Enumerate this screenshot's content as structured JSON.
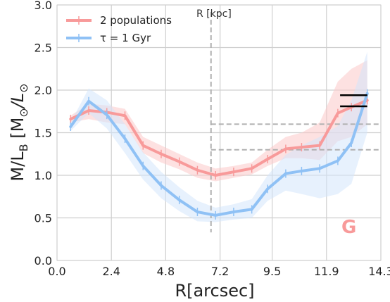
{
  "chart_data": {
    "type": "line",
    "xlabel": "R[arcsec]",
    "ylabel_parts": {
      "main": "M/L",
      "sub": "B",
      "bracket_open": " [M",
      "sun1": "⊙",
      "slash": "/L",
      "sun2": "⊙",
      "bracket_close": "]"
    },
    "xlim": [
      0.0,
      14.3
    ],
    "ylim": [
      0.0,
      3.0
    ],
    "x_ticks": [
      0.0,
      2.4,
      4.8,
      7.2,
      9.5,
      11.9,
      14.3
    ],
    "x_tick_labels": [
      "0.0",
      "2.4",
      "4.8",
      "7.2",
      "9.5",
      "11.9",
      "14.3"
    ],
    "y_ticks": [
      0.0,
      0.5,
      1.0,
      1.5,
      2.0,
      2.5,
      3.0
    ],
    "y_tick_labels": [
      "0.0",
      "0.5",
      "1.0",
      "1.5",
      "2.0",
      "2.5",
      "3.0"
    ],
    "grid": true,
    "legend_position": "top-left",
    "series": [
      {
        "name": "2 populations",
        "color": "#f89a9a",
        "band_color": "#fbc8c8",
        "x": [
          0.6,
          1.4,
          2.2,
          3.0,
          3.8,
          4.6,
          5.4,
          6.2,
          7.0,
          7.8,
          8.6,
          9.3,
          10.1,
          10.8,
          11.6,
          12.4,
          13.0,
          13.7
        ],
        "values": [
          1.66,
          1.76,
          1.74,
          1.7,
          1.35,
          1.25,
          1.16,
          1.06,
          1.0,
          1.04,
          1.08,
          1.19,
          1.31,
          1.33,
          1.35,
          1.73,
          1.8,
          1.88
        ],
        "lower": [
          1.62,
          1.66,
          1.62,
          1.6,
          1.26,
          1.15,
          1.07,
          0.97,
          0.93,
          0.97,
          1.01,
          1.11,
          1.2,
          1.2,
          1.18,
          1.4,
          1.45,
          1.6
        ],
        "upper": [
          1.7,
          1.84,
          1.82,
          1.78,
          1.45,
          1.35,
          1.25,
          1.15,
          1.08,
          1.11,
          1.15,
          1.3,
          1.45,
          1.5,
          1.62,
          2.1,
          2.25,
          2.35
        ]
      },
      {
        "name": "τ = 1 Gyr",
        "color": "#8fc1f5",
        "band_color": "#d3e6fb",
        "x": [
          0.6,
          1.4,
          2.2,
          3.0,
          3.8,
          4.6,
          5.4,
          6.2,
          7.0,
          7.8,
          8.6,
          9.3,
          10.1,
          10.8,
          11.6,
          12.4,
          13.0,
          13.7
        ],
        "values": [
          1.57,
          1.87,
          1.71,
          1.43,
          1.11,
          0.88,
          0.71,
          0.57,
          0.53,
          0.57,
          0.6,
          0.84,
          1.02,
          1.05,
          1.08,
          1.17,
          1.38,
          1.96
        ],
        "lower": [
          1.52,
          1.73,
          1.55,
          1.26,
          0.95,
          0.73,
          0.58,
          0.46,
          0.45,
          0.48,
          0.5,
          0.7,
          0.82,
          0.78,
          0.73,
          0.78,
          0.9,
          1.5
        ],
        "upper": [
          1.62,
          2.02,
          1.88,
          1.6,
          1.27,
          1.04,
          0.86,
          0.7,
          0.62,
          0.66,
          0.72,
          1.0,
          1.24,
          1.35,
          1.45,
          1.58,
          1.88,
          2.45
        ]
      }
    ],
    "annotations": {
      "vline_label": "R [kpc]",
      "vline_x": 6.8,
      "hlines_dashed": [
        {
          "y": 1.6,
          "x_start": 6.8,
          "x_end": 14.3
        },
        {
          "y": 1.3,
          "x_start": 6.8,
          "x_end": 14.3
        }
      ],
      "hlines_solid": [
        {
          "y": 1.94,
          "x_start": 12.5,
          "x_end": 13.7
        },
        {
          "y": 1.81,
          "x_start": 12.5,
          "x_end": 13.7
        }
      ],
      "corner_letter": "G",
      "corner_letter_color": "#f89a9a"
    }
  }
}
